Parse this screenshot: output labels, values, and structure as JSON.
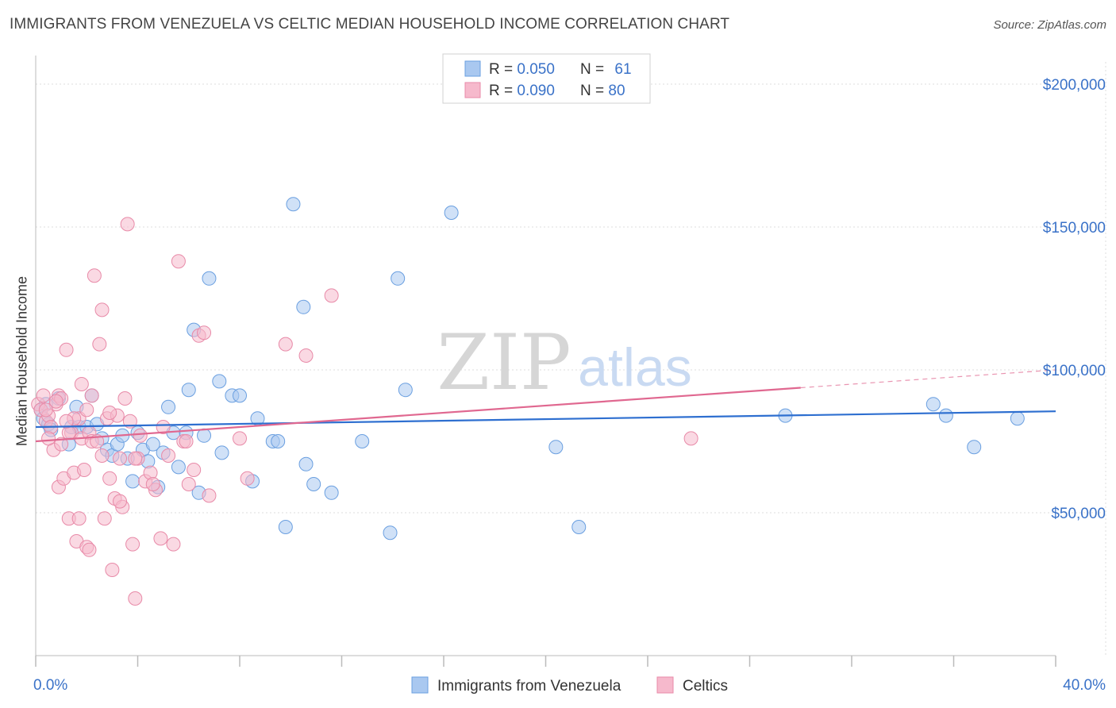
{
  "header": {
    "title": "IMMIGRANTS FROM VENEZUELA VS CELTIC MEDIAN HOUSEHOLD INCOME CORRELATION CHART",
    "source": "Source: ZipAtlas.com"
  },
  "watermark": {
    "zip": "ZIP",
    "atlas": "atlas"
  },
  "colors": {
    "blue_fill": "#a9c8f0",
    "blue_stroke": "#6a9fe0",
    "blue_line": "#2e6fd0",
    "pink_fill": "#f6b9cc",
    "pink_stroke": "#e88aa8",
    "pink_line": "#e06890",
    "axis_label_blue": "#3a72c8",
    "grid": "#dddddd"
  },
  "legend_top": {
    "rows": [
      {
        "r_label": "R = ",
        "r_value": "0.050",
        "n_label": "N = ",
        "n_value": "61"
      },
      {
        "r_label": "R = ",
        "r_value": "0.090",
        "n_label": "N = ",
        "n_value": "80"
      }
    ]
  },
  "chart_data": {
    "type": "scatter",
    "title": "IMMIGRANTS FROM VENEZUELA VS CELTIC MEDIAN HOUSEHOLD INCOME CORRELATION CHART",
    "xlabel": "",
    "ylabel": "Median Household Income",
    "xlim": [
      0,
      40
    ],
    "ylim": [
      0,
      210000
    ],
    "x_tick_labels": [
      "0.0%",
      "40.0%"
    ],
    "y_ticks": [
      50000,
      100000,
      150000,
      200000
    ],
    "y_tick_labels": [
      "$50,000",
      "$100,000",
      "$150,000",
      "$200,000"
    ],
    "grid": true,
    "legend_position": "bottom-center",
    "series": [
      {
        "name": "Immigrants from Venezuela",
        "color": "#a9c8f0",
        "trend": {
          "x0": 0,
          "y0": 80000,
          "x1": 40,
          "y1": 85500,
          "dashed_from": null
        },
        "points": [
          [
            0.2,
            86000
          ],
          [
            0.3,
            83000
          ],
          [
            0.5,
            81000
          ],
          [
            0.6,
            79000
          ],
          [
            0.9,
            90000
          ],
          [
            1.3,
            74000
          ],
          [
            1.4,
            80000
          ],
          [
            1.6,
            87000
          ],
          [
            1.7,
            80000
          ],
          [
            2.0,
            80000
          ],
          [
            2.2,
            91000
          ],
          [
            2.4,
            81000
          ],
          [
            2.6,
            76000
          ],
          [
            2.8,
            72000
          ],
          [
            3.0,
            70000
          ],
          [
            3.2,
            74000
          ],
          [
            3.4,
            77000
          ],
          [
            3.6,
            69000
          ],
          [
            3.8,
            61000
          ],
          [
            4.0,
            78000
          ],
          [
            4.2,
            72000
          ],
          [
            4.4,
            68000
          ],
          [
            4.6,
            74000
          ],
          [
            4.8,
            59000
          ],
          [
            5.0,
            71000
          ],
          [
            5.2,
            87000
          ],
          [
            5.4,
            78000
          ],
          [
            5.6,
            66000
          ],
          [
            5.9,
            78000
          ],
          [
            6.0,
            93000
          ],
          [
            6.2,
            114000
          ],
          [
            6.4,
            57000
          ],
          [
            6.6,
            77000
          ],
          [
            6.8,
            132000
          ],
          [
            7.3,
            71000
          ],
          [
            7.2,
            96000
          ],
          [
            7.7,
            91000
          ],
          [
            8.0,
            91000
          ],
          [
            8.5,
            61000
          ],
          [
            8.7,
            83000
          ],
          [
            9.3,
            75000
          ],
          [
            9.5,
            75000
          ],
          [
            10.1,
            158000
          ],
          [
            10.5,
            122000
          ],
          [
            10.6,
            67000
          ],
          [
            10.9,
            60000
          ],
          [
            11.6,
            57000
          ],
          [
            12.8,
            75000
          ],
          [
            13.9,
            43000
          ],
          [
            14.2,
            132000
          ],
          [
            14.5,
            93000
          ],
          [
            16.3,
            155000
          ],
          [
            9.8,
            45000
          ],
          [
            20.4,
            73000
          ],
          [
            21.3,
            45000
          ],
          [
            29.4,
            84000
          ],
          [
            35.2,
            88000
          ],
          [
            35.7,
            84000
          ],
          [
            36.8,
            73000
          ],
          [
            38.5,
            83000
          ],
          [
            0.4,
            88000
          ]
        ]
      },
      {
        "name": "Celtics",
        "color": "#f6b9cc",
        "trend": {
          "x0": 0,
          "y0": 75000,
          "x1": 40,
          "y1": 100000,
          "dashed_from": 30
        },
        "points": [
          [
            0.1,
            88000
          ],
          [
            0.2,
            86000
          ],
          [
            0.3,
            91000
          ],
          [
            0.4,
            82000
          ],
          [
            0.5,
            84000
          ],
          [
            0.6,
            80000
          ],
          [
            0.7,
            72000
          ],
          [
            0.8,
            88000
          ],
          [
            0.9,
            91000
          ],
          [
            0.9,
            59000
          ],
          [
            1.0,
            90000
          ],
          [
            1.1,
            62000
          ],
          [
            1.2,
            107000
          ],
          [
            1.3,
            48000
          ],
          [
            1.4,
            78000
          ],
          [
            1.5,
            64000
          ],
          [
            1.6,
            40000
          ],
          [
            1.7,
            83000
          ],
          [
            1.8,
            76000
          ],
          [
            1.9,
            65000
          ],
          [
            2.0,
            38000
          ],
          [
            2.1,
            78000
          ],
          [
            2.2,
            75000
          ],
          [
            2.0,
            86000
          ],
          [
            2.3,
            133000
          ],
          [
            2.4,
            75000
          ],
          [
            2.5,
            109000
          ],
          [
            2.6,
            121000
          ],
          [
            2.7,
            48000
          ],
          [
            2.8,
            83000
          ],
          [
            2.9,
            62000
          ],
          [
            3.0,
            30000
          ],
          [
            3.1,
            55000
          ],
          [
            3.2,
            84000
          ],
          [
            3.3,
            69000
          ],
          [
            3.4,
            52000
          ],
          [
            3.5,
            90000
          ],
          [
            3.6,
            151000
          ],
          [
            3.7,
            82000
          ],
          [
            3.8,
            39000
          ],
          [
            3.9,
            20000
          ],
          [
            4.0,
            69000
          ],
          [
            4.1,
            77000
          ],
          [
            4.3,
            61000
          ],
          [
            4.5,
            64000
          ],
          [
            4.7,
            58000
          ],
          [
            4.9,
            41000
          ],
          [
            5.0,
            80000
          ],
          [
            5.2,
            70000
          ],
          [
            5.4,
            39000
          ],
          [
            5.6,
            138000
          ],
          [
            5.8,
            75000
          ],
          [
            6.0,
            60000
          ],
          [
            6.2,
            65000
          ],
          [
            6.4,
            112000
          ],
          [
            6.6,
            113000
          ],
          [
            6.8,
            56000
          ],
          [
            8.3,
            62000
          ],
          [
            8.0,
            76000
          ],
          [
            9.8,
            109000
          ],
          [
            10.6,
            105000
          ],
          [
            11.6,
            126000
          ],
          [
            25.7,
            76000
          ],
          [
            0.4,
            86000
          ],
          [
            1.3,
            78000
          ],
          [
            0.8,
            89000
          ],
          [
            1.8,
            95000
          ],
          [
            2.2,
            91000
          ],
          [
            1.0,
            74000
          ],
          [
            1.5,
            83000
          ],
          [
            2.6,
            70000
          ],
          [
            3.3,
            54000
          ],
          [
            3.9,
            69000
          ],
          [
            4.6,
            60000
          ],
          [
            5.9,
            75000
          ],
          [
            2.1,
            37000
          ],
          [
            0.5,
            76000
          ],
          [
            1.2,
            82000
          ],
          [
            2.9,
            85000
          ],
          [
            1.7,
            48000
          ]
        ]
      }
    ]
  }
}
